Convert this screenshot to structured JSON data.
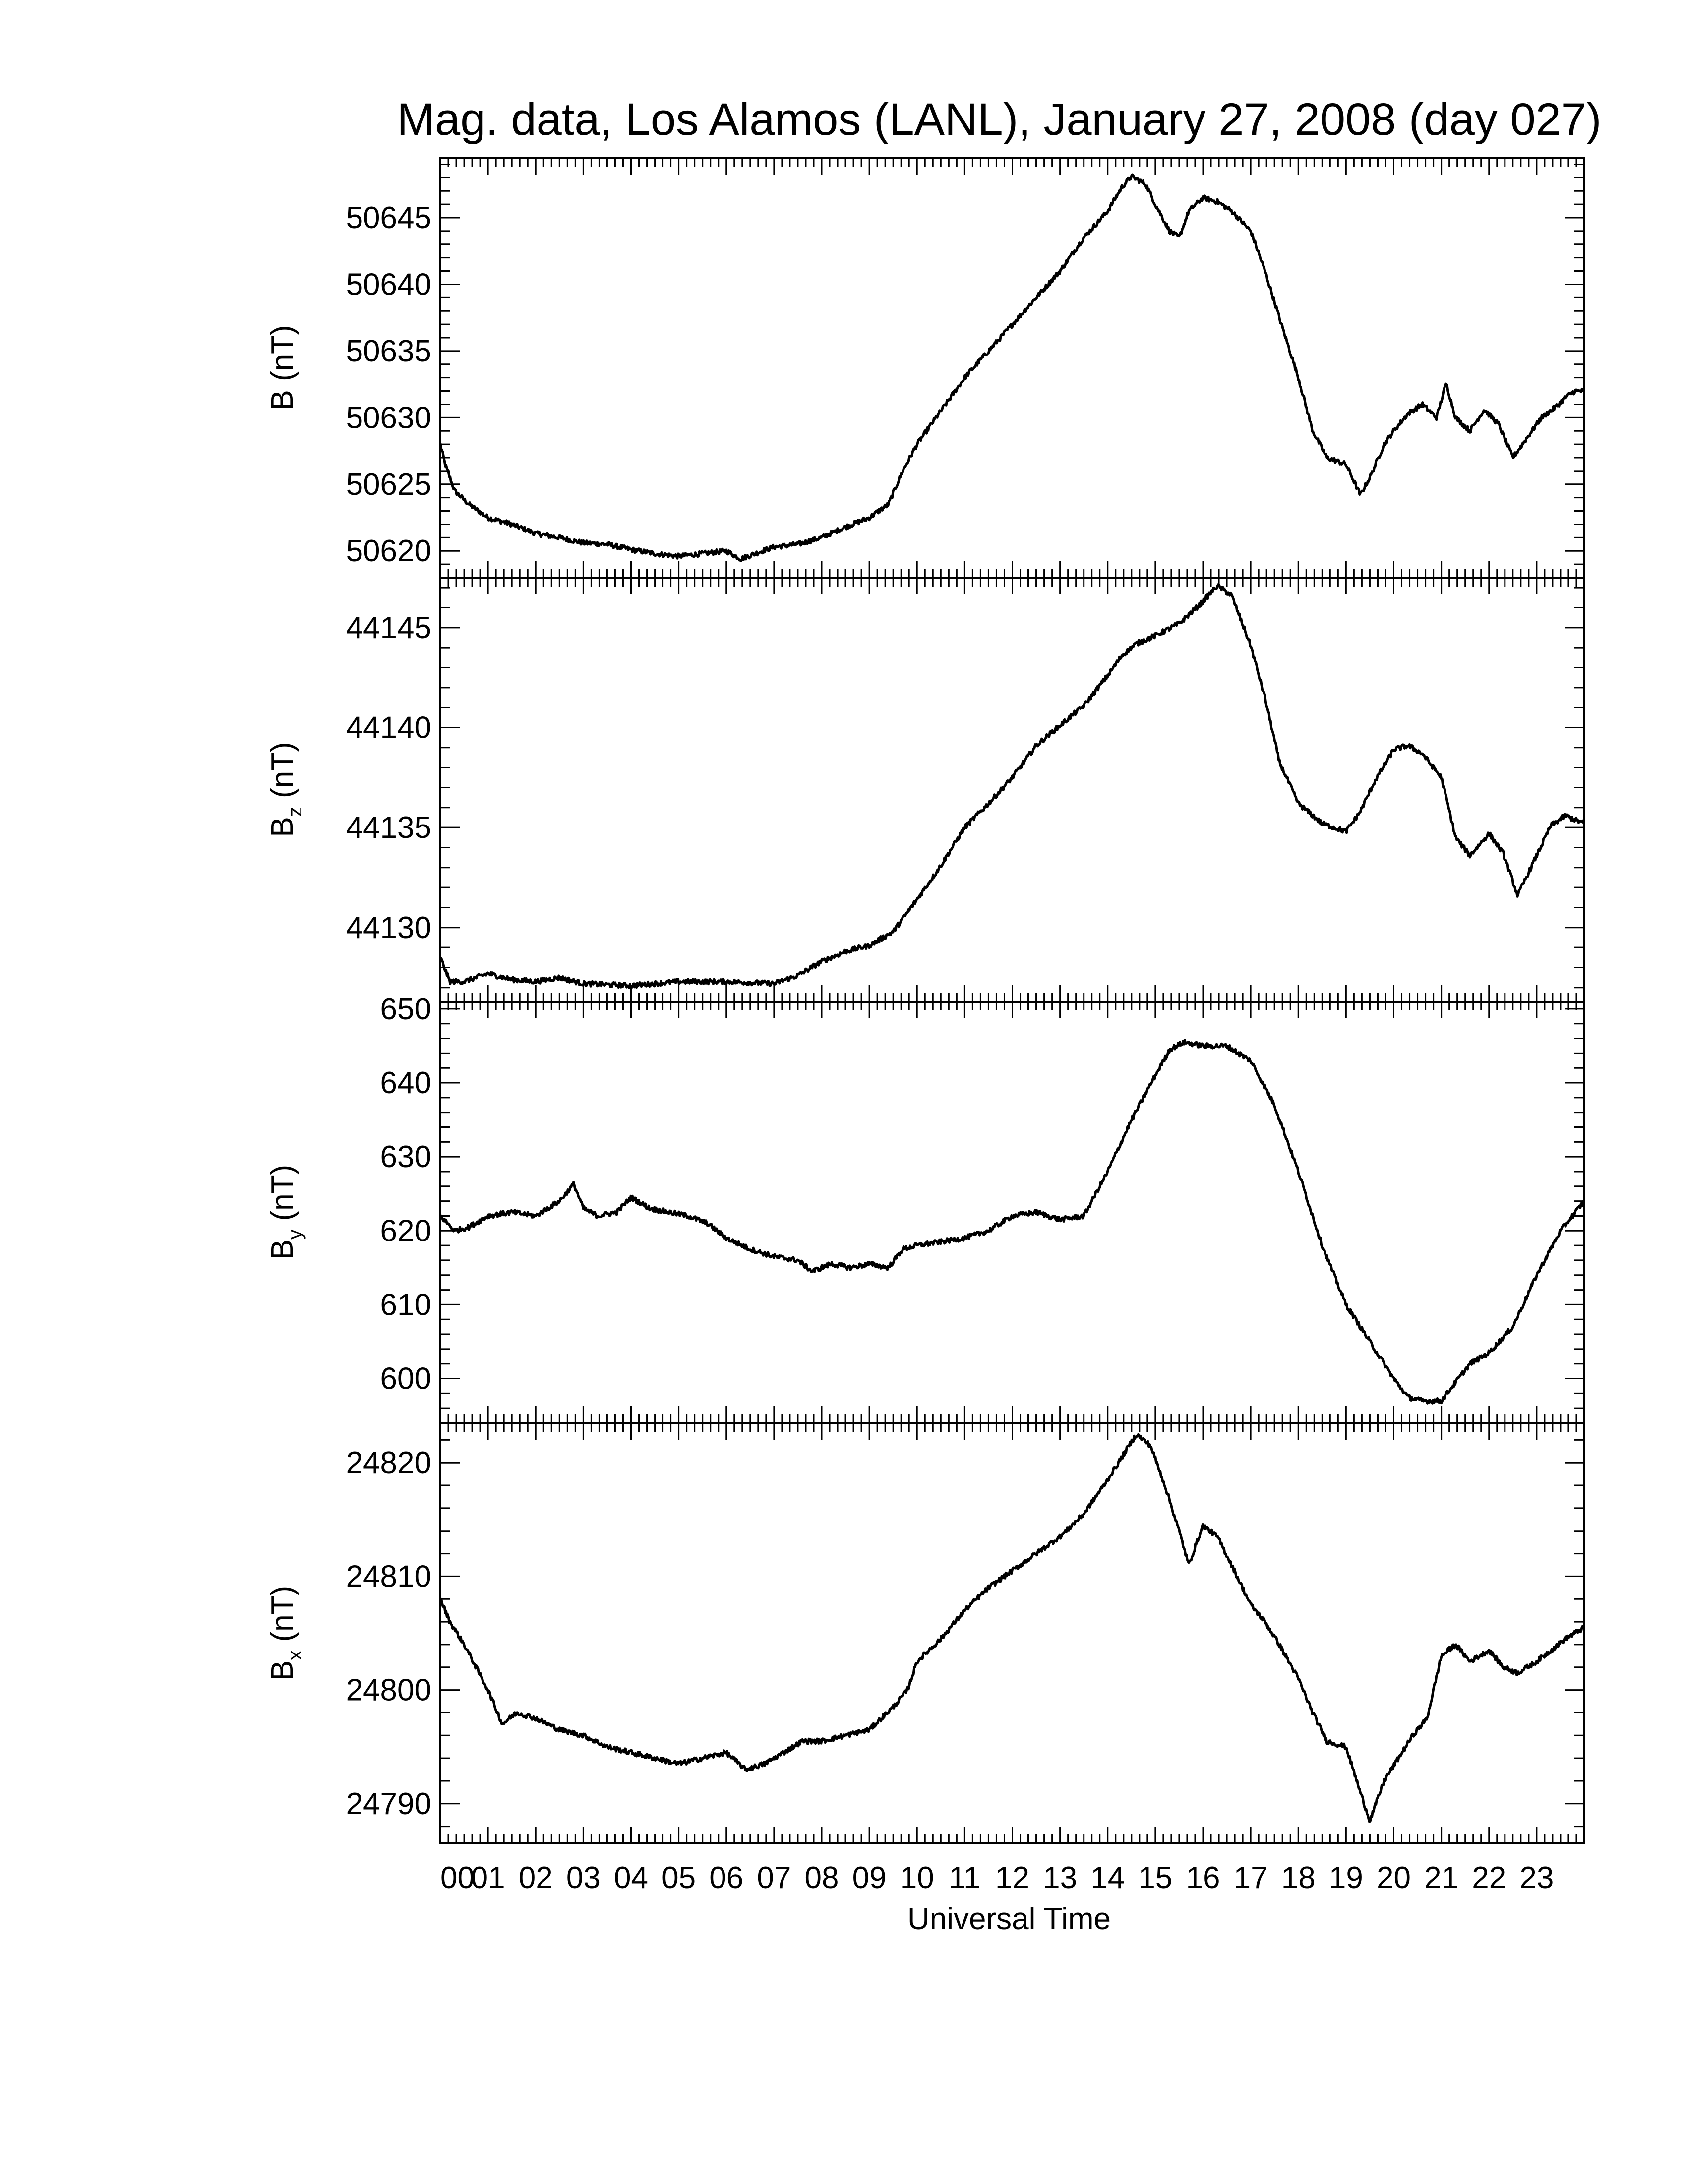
{
  "title": "Mag. data, Los Alamos (LANL), January 27, 2008 (day 027)",
  "xlabel": "Universal Time",
  "colors": {
    "line": "#000000",
    "background": "#ffffff"
  },
  "chart_data": [
    {
      "type": "line",
      "ylabel": "B (nT)",
      "ylabel_main": "B",
      "ylabel_sub": "",
      "ylabel_unit": " (nT)",
      "xlim": [
        0,
        24
      ],
      "ylim": [
        50618,
        50649.5
      ],
      "yticks": [
        50620,
        50625,
        50630,
        50635,
        50640,
        50645
      ],
      "series": [
        {
          "x": [
            0,
            0.1,
            0.3,
            0.6,
            1.0,
            1.5,
            2.0,
            2.5,
            3.0,
            3.5,
            4.0,
            4.5,
            5.0,
            5.5,
            6.0,
            6.3,
            6.6,
            7.0,
            7.5,
            8.0,
            8.5,
            9.0,
            9.4,
            9.7,
            10.0,
            10.5,
            11.0,
            11.5,
            12.0,
            12.5,
            13.0,
            13.5,
            14.0,
            14.3,
            14.5,
            14.8,
            15.0,
            15.3,
            15.5,
            15.7,
            16.0,
            16.3,
            16.6,
            17.0,
            17.3,
            17.6,
            18.0,
            18.3,
            18.6,
            19.0,
            19.3,
            19.5,
            19.8,
            20.0,
            20.3,
            20.6,
            20.9,
            21.1,
            21.3,
            21.6,
            21.9,
            22.2,
            22.5,
            22.8,
            23.1,
            23.4,
            23.6,
            23.8,
            24.0
          ],
          "values": [
            50628,
            50626.5,
            50624.5,
            50623.5,
            50622.5,
            50622,
            50621.3,
            50621,
            50620.6,
            50620.5,
            50620.1,
            50619.8,
            50619.6,
            50619.8,
            50620,
            50619.4,
            50619.8,
            50620.3,
            50620.5,
            50621,
            50621.8,
            50622.5,
            50623.5,
            50626,
            50628,
            50630.5,
            50633,
            50635,
            50637,
            50639,
            50641,
            50643.5,
            50645.5,
            50647.3,
            50648.1,
            50647.5,
            50646,
            50644,
            50643.5,
            50645.5,
            50646.5,
            50646.2,
            50645.5,
            50644,
            50641,
            50637.5,
            50633,
            50629,
            50627,
            50626.5,
            50624.2,
            50625.5,
            50628,
            50629,
            50630.3,
            50631,
            50630,
            50632.6,
            50630,
            50629,
            50630.6,
            50629.5,
            50627,
            50628.5,
            50630,
            50630.8,
            50631.5,
            50632,
            50632
          ]
        }
      ]
    },
    {
      "type": "line",
      "ylabel": "Bz (nT)",
      "ylabel_main": "B",
      "ylabel_sub": "z",
      "ylabel_unit": " (nT)",
      "xlim": [
        0,
        24
      ],
      "ylim": [
        44126.3,
        44147.5
      ],
      "yticks": [
        44130,
        44135,
        44140,
        44145
      ],
      "series": [
        {
          "x": [
            0,
            0.2,
            0.5,
            1.0,
            1.5,
            2.0,
            2.5,
            3.0,
            4.0,
            5.0,
            6.0,
            7.0,
            7.5,
            8.0,
            8.5,
            9.0,
            9.5,
            10.0,
            10.5,
            11.0,
            11.5,
            12.0,
            12.5,
            13.0,
            13.5,
            14.0,
            14.3,
            14.6,
            15.0,
            15.5,
            16.0,
            16.3,
            16.6,
            17.0,
            17.3,
            17.6,
            18.0,
            18.5,
            19.0,
            19.3,
            19.6,
            20.0,
            20.3,
            20.6,
            21.0,
            21.3,
            21.6,
            22.0,
            22.3,
            22.6,
            23.0,
            23.3,
            23.6,
            24.0
          ],
          "values": [
            44128.5,
            44127.3,
            44127.3,
            44127.7,
            44127.4,
            44127.3,
            44127.5,
            44127.2,
            44127.1,
            44127.3,
            44127.3,
            44127.2,
            44127.6,
            44128.3,
            44128.8,
            44129.1,
            44129.8,
            44131.4,
            44133.1,
            44135,
            44136.2,
            44137.5,
            44139.1,
            44140.1,
            44141.1,
            44142.6,
            44143.6,
            44144.2,
            44144.6,
            44145.2,
            44146.3,
            44147.1,
            44146.6,
            44144.1,
            44141.5,
            44138.3,
            44136.2,
            44135.2,
            44134.8,
            44135.8,
            44137.3,
            44138.9,
            44139.1,
            44138.7,
            44137.5,
            44134.5,
            44133.6,
            44134.7,
            44133.7,
            44131.6,
            44133.6,
            44135.1,
            44135.6,
            44135.2
          ]
        }
      ]
    },
    {
      "type": "line",
      "ylabel": "By (nT)",
      "ylabel_main": "B",
      "ylabel_sub": "y",
      "ylabel_unit": " (nT)",
      "xlim": [
        0,
        24
      ],
      "ylim": [
        594,
        651
      ],
      "yticks": [
        600,
        610,
        620,
        630,
        640,
        650
      ],
      "series": [
        {
          "x": [
            0,
            0.3,
            0.6,
            1.0,
            1.5,
            2.0,
            2.5,
            2.8,
            3.0,
            3.3,
            3.7,
            4.0,
            4.4,
            4.8,
            5.2,
            5.6,
            6.0,
            6.5,
            7.0,
            7.5,
            7.8,
            8.2,
            8.6,
            9.0,
            9.4,
            9.7,
            10.0,
            10.5,
            11.0,
            11.5,
            12.0,
            12.5,
            13.0,
            13.5,
            14.0,
            14.5,
            15.0,
            15.3,
            15.6,
            16.0,
            16.5,
            17.0,
            17.5,
            18.0,
            18.5,
            19.0,
            19.5,
            20.0,
            20.3,
            20.6,
            21.0,
            21.3,
            21.6,
            22.0,
            22.5,
            23.0,
            23.5,
            24.0
          ],
          "values": [
            622,
            620,
            620.5,
            622,
            622.5,
            622,
            624,
            626.3,
            623,
            622,
            622.5,
            624.5,
            623,
            622.5,
            622,
            621,
            619,
            617.5,
            616.5,
            616,
            614.5,
            615.5,
            615,
            615.5,
            615,
            617.5,
            618,
            618.5,
            619,
            620,
            622,
            622.5,
            621.5,
            622,
            628,
            635,
            641,
            644.5,
            645.5,
            645,
            645,
            643,
            637,
            628,
            618,
            610,
            605,
            600,
            597.5,
            597,
            597,
            599.5,
            602,
            603.5,
            607,
            614,
            620,
            624
          ]
        }
      ]
    },
    {
      "type": "line",
      "ylabel": "Bx (nT)",
      "ylabel_main": "B",
      "ylabel_sub": "x",
      "ylabel_unit": " (nT)",
      "xlim": [
        0,
        24
      ],
      "ylim": [
        24786.5,
        24823.5
      ],
      "yticks": [
        24790,
        24800,
        24810,
        24820
      ],
      "series": [
        {
          "x": [
            0,
            0.2,
            0.5,
            1.0,
            1.3,
            1.6,
            2.0,
            2.5,
            3.0,
            3.5,
            4.0,
            4.5,
            5.0,
            5.5,
            6.0,
            6.4,
            6.8,
            7.2,
            7.6,
            8.0,
            8.5,
            9.0,
            9.5,
            9.8,
            10.0,
            10.5,
            11.0,
            11.5,
            12.0,
            12.5,
            13.0,
            13.5,
            14.0,
            14.3,
            14.6,
            14.9,
            15.2,
            15.5,
            15.7,
            16.0,
            16.3,
            16.6,
            17.0,
            17.3,
            17.6,
            18.0,
            18.3,
            18.6,
            19.0,
            19.3,
            19.5,
            19.8,
            20.1,
            20.4,
            20.7,
            21.0,
            21.3,
            21.6,
            22.0,
            22.3,
            22.6,
            23.0,
            23.3,
            23.6,
            24.0
          ],
          "values": [
            24808,
            24806,
            24804,
            24800,
            24797,
            24798,
            24797.5,
            24796.5,
            24796,
            24795,
            24794.5,
            24794,
            24793.5,
            24794,
            24794.5,
            24793,
            24793.5,
            24794.5,
            24795.5,
            24795.5,
            24796,
            24796.5,
            24798.5,
            24800,
            24802.5,
            24804.5,
            24807,
            24809,
            24810.5,
            24812,
            24813.5,
            24815.5,
            24818.5,
            24820.5,
            24822.5,
            24821.5,
            24818,
            24814,
            24811,
            24814.5,
            24813.5,
            24811,
            24807.5,
            24806,
            24804,
            24801,
            24798,
            24795.5,
            24795,
            24791,
            24788.5,
            24792,
            24794,
            24796,
            24797.5,
            24803,
            24804,
            24802.5,
            24803.5,
            24802,
            24801.5,
            24802.5,
            24803.5,
            24804.5,
            24805.5
          ]
        }
      ]
    }
  ],
  "xticks": [
    "00",
    "01",
    "02",
    "03",
    "04",
    "05",
    "06",
    "07",
    "08",
    "09",
    "10",
    "11",
    "12",
    "13",
    "14",
    "15",
    "16",
    "17",
    "18",
    "19",
    "20",
    "21",
    "22",
    "23"
  ]
}
